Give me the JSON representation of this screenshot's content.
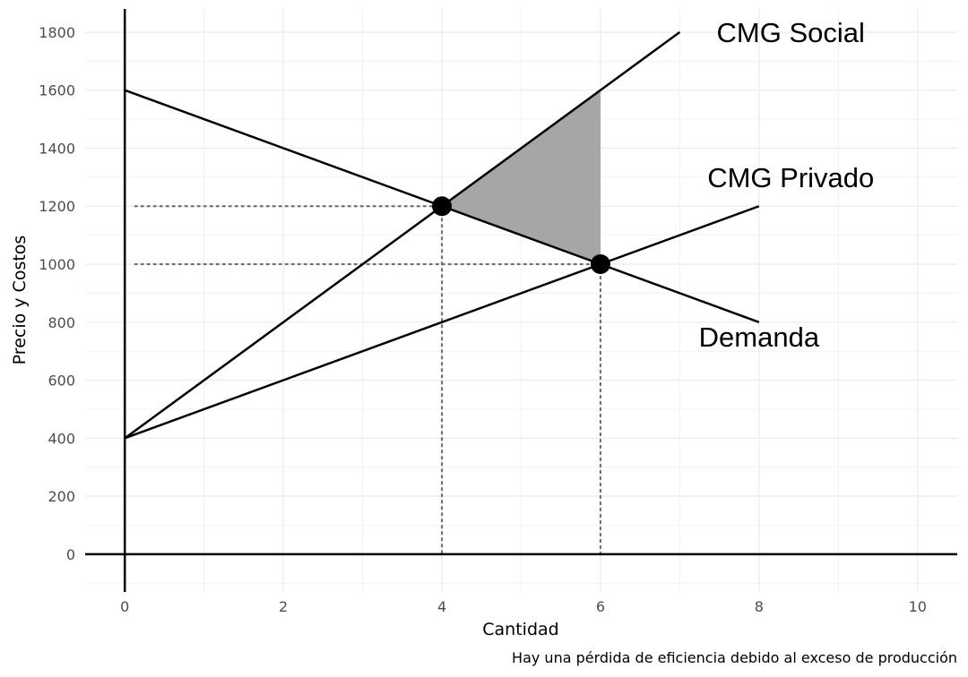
{
  "chart_data": {
    "type": "line",
    "xlabel": "Cantidad",
    "ylabel": "Precio y Costos",
    "caption": "Hay una pérdida de eficiencia debido al exceso de producción",
    "xlim": [
      -0.5,
      10.5
    ],
    "ylim": [
      -130,
      1880
    ],
    "x_ticks": [
      0,
      2,
      4,
      6,
      8,
      10
    ],
    "y_ticks": [
      0,
      200,
      400,
      600,
      800,
      1000,
      1200,
      1400,
      1600,
      1800
    ],
    "grid": true,
    "series": [
      {
        "name": "CMG Social",
        "x": [
          0,
          7
        ],
        "y": [
          400,
          1800
        ]
      },
      {
        "name": "CMG Privado",
        "x": [
          0,
          8
        ],
        "y": [
          400,
          1200
        ]
      },
      {
        "name": "Demanda",
        "x": [
          0,
          8
        ],
        "y": [
          1600,
          800
        ]
      }
    ],
    "equilibria": [
      {
        "x": 4,
        "y": 1200
      },
      {
        "x": 6,
        "y": 1000
      }
    ],
    "shaded_area": [
      [
        4,
        1200
      ],
      [
        6,
        1600
      ],
      [
        6,
        1000
      ]
    ],
    "label_positions": {
      "CMG Social": [
        8.4,
        1800
      ],
      "CMG Privado": [
        8.4,
        1300
      ],
      "Demanda": [
        8.0,
        750
      ]
    },
    "colors": {
      "line": "#000000",
      "shade": "#a6a6a6",
      "guide": "#707070",
      "grid": "#ebebeb"
    }
  }
}
